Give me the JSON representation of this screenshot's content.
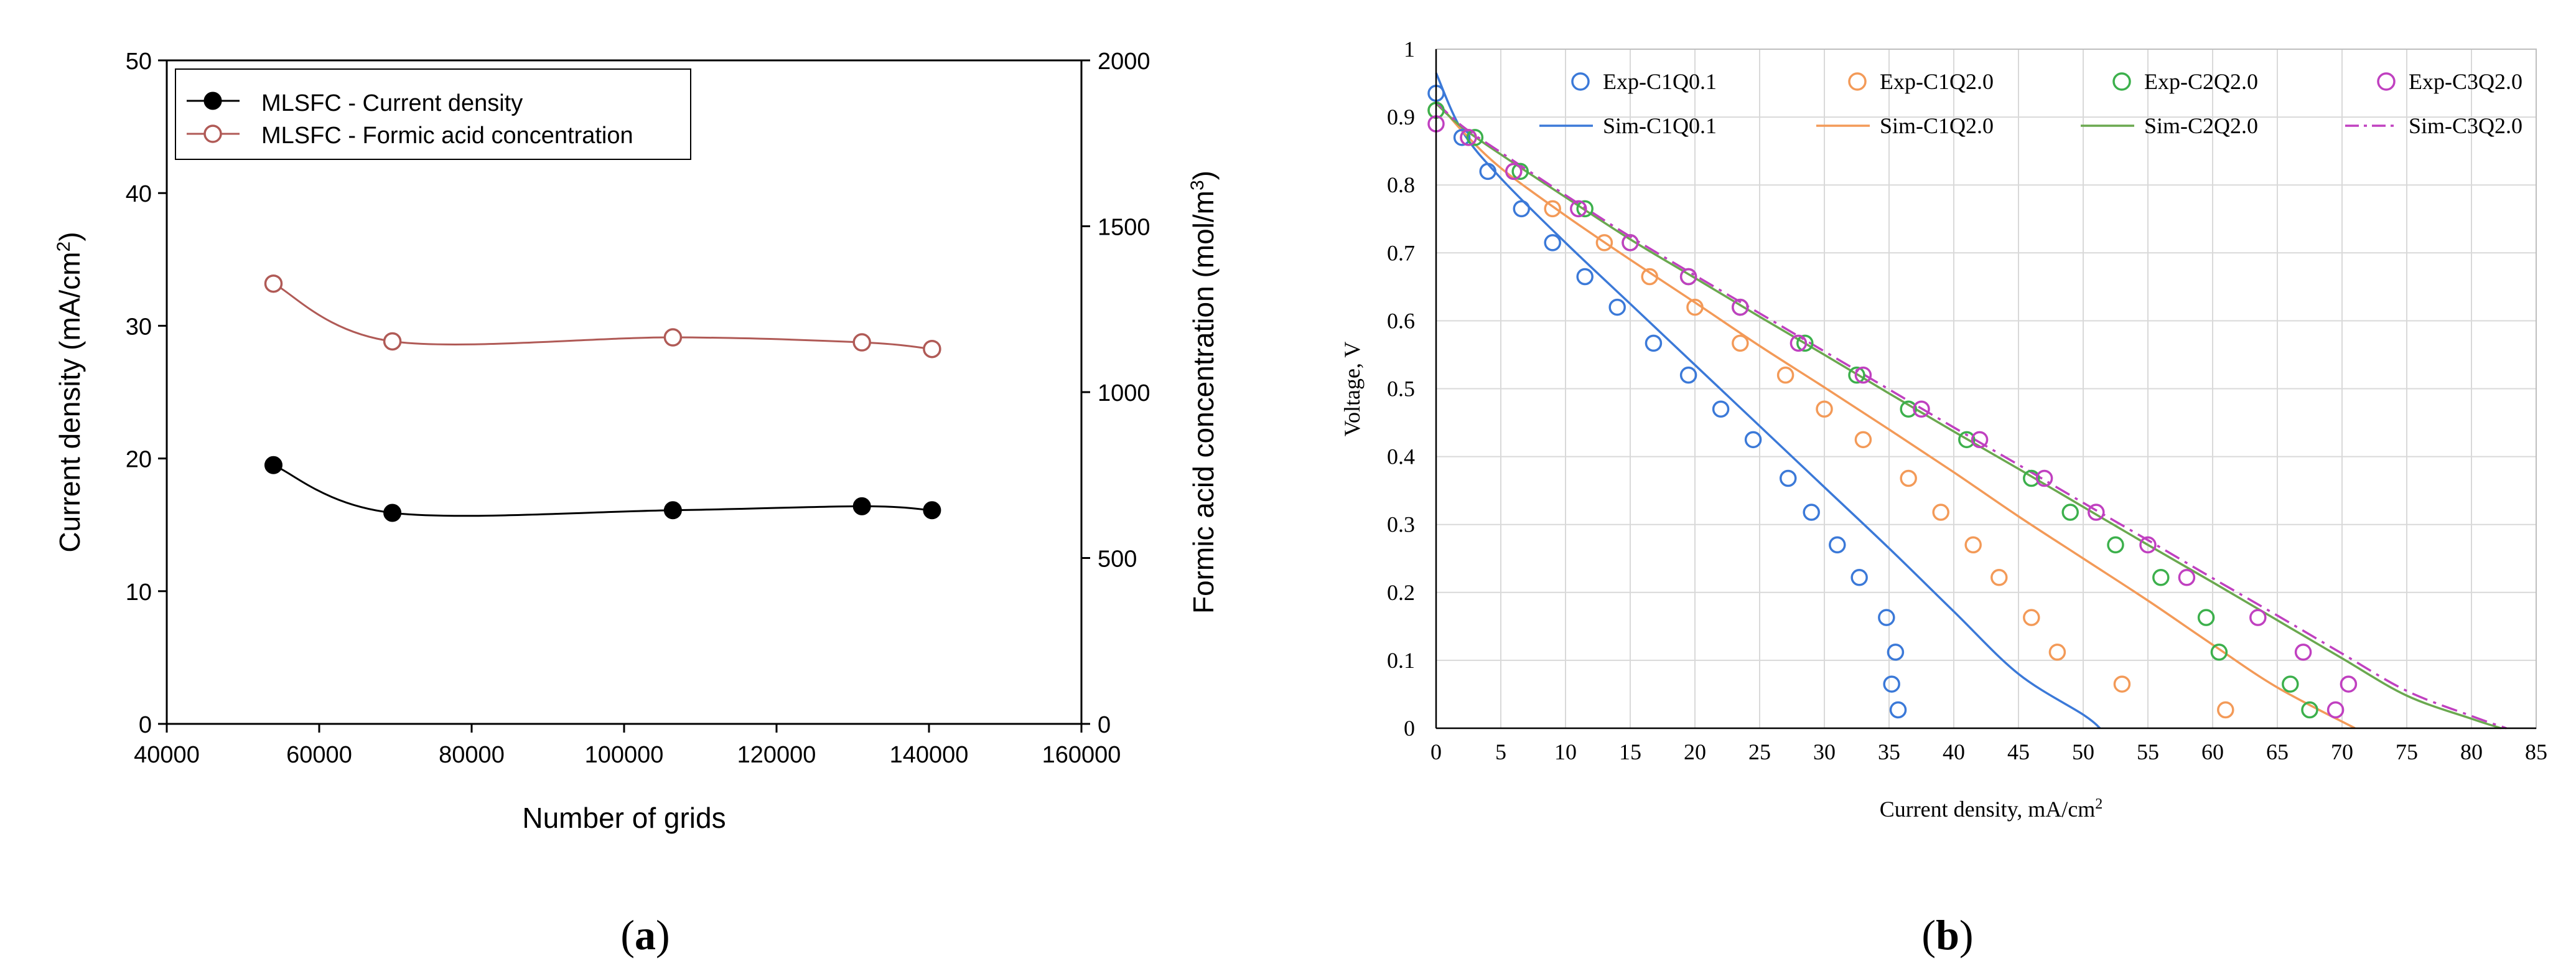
{
  "colors": {
    "axis": "#000000",
    "grid": "#d9d9d9",
    "black_series": "#000000",
    "red_series": "#b05a56",
    "blue": "#3b79d8",
    "orange": "#f39a58",
    "green": "#3cb04c",
    "green_line": "#6aa84f",
    "magenta": "#c040c0"
  },
  "chart_data": [
    {
      "panel": "a",
      "panel_label": "(a)",
      "panel_letter": "a",
      "type": "line",
      "title": "",
      "xlabel": "Number of grids",
      "ylabel": "Current density (mA/cm²)",
      "ylabel_parts": [
        "Current density (mA/cm",
        "2",
        ")"
      ],
      "y2label": "Formic acid concentration (mol/m³)",
      "y2label_parts": [
        "Formic acid concentration (mol/m",
        "3",
        ")"
      ],
      "xlim": [
        40000,
        160000
      ],
      "ylim": [
        0,
        50
      ],
      "y2lim": [
        0,
        2000
      ],
      "xticks": [
        40000,
        60000,
        80000,
        100000,
        120000,
        140000,
        160000
      ],
      "yticks": [
        0,
        10,
        20,
        30,
        40,
        50
      ],
      "y2ticks": [
        0,
        500,
        1000,
        1500,
        2000
      ],
      "x": [
        54000,
        69600,
        106400,
        131200,
        140400
      ],
      "legend_position": "top-left",
      "series": [
        {
          "name": "MLSFC - Current density",
          "axis": "left",
          "marker": "filled-circle",
          "values": [
            19.5,
            15.9,
            16.1,
            16.4,
            16.1
          ]
        },
        {
          "name": "MLSFC - Formic acid concentration",
          "axis": "right",
          "marker": "open-circle",
          "values": [
            1327,
            1153,
            1165,
            1150,
            1130
          ]
        }
      ]
    },
    {
      "panel": "b",
      "panel_label": "(b)",
      "panel_letter": "b",
      "type": "scatter",
      "title": "",
      "xlabel": "Current density, mA/cm²",
      "xlabel_parts": [
        "Current density, mA/cm",
        "2"
      ],
      "ylabel": "Voltage, V",
      "xlim": [
        0,
        85
      ],
      "ylim": [
        0,
        1
      ],
      "xticks": [
        0,
        5,
        10,
        15,
        20,
        25,
        30,
        35,
        40,
        45,
        50,
        55,
        60,
        65,
        70,
        75,
        80,
        85
      ],
      "yticks": [
        0,
        0.1,
        0.2,
        0.3,
        0.4,
        0.5,
        0.6,
        0.7,
        0.8,
        0.9,
        1
      ],
      "ytick_labels": [
        "0",
        "0.1",
        "0.2",
        "0.3",
        "0.4",
        "0.5",
        "0.6",
        "0.7",
        "0.8",
        "0.9",
        "1"
      ],
      "grid": true,
      "legend_position": "top",
      "series": [
        {
          "name": "Exp-C1Q0.1",
          "kind": "marker",
          "color_key": "blue",
          "x": [
            0,
            2,
            4,
            6.6,
            9,
            11.5,
            14,
            16.8,
            19.5,
            22,
            24.5,
            27.2,
            29,
            31,
            32.7,
            34.8,
            35.5,
            35.2,
            35.7
          ],
          "y": [
            0.935,
            0.87,
            0.82,
            0.765,
            0.715,
            0.665,
            0.62,
            0.567,
            0.52,
            0.47,
            0.425,
            0.368,
            0.318,
            0.27,
            0.222,
            0.163,
            0.112,
            0.065,
            0.027
          ]
        },
        {
          "name": "Exp-C1Q2.0",
          "kind": "marker",
          "color_key": "orange",
          "x": [
            0,
            2.5,
            6,
            9,
            13,
            16.5,
            20,
            23.5,
            27,
            30,
            33,
            36.5,
            39,
            41.5,
            43.5,
            46,
            48,
            53,
            61
          ],
          "y": [
            0.91,
            0.87,
            0.82,
            0.765,
            0.715,
            0.665,
            0.62,
            0.567,
            0.52,
            0.47,
            0.425,
            0.368,
            0.318,
            0.27,
            0.222,
            0.163,
            0.112,
            0.065,
            0.027
          ]
        },
        {
          "name": "Exp-C2Q2.0",
          "kind": "marker",
          "color_key": "green",
          "x": [
            0,
            3,
            6.5,
            11.5,
            15,
            19.5,
            23.5,
            28.5,
            32.5,
            36.5,
            41,
            46,
            49,
            52.5,
            56,
            59.5,
            60.5,
            66,
            67.5
          ],
          "y": [
            0.91,
            0.87,
            0.82,
            0.765,
            0.715,
            0.665,
            0.62,
            0.567,
            0.52,
            0.47,
            0.425,
            0.368,
            0.318,
            0.27,
            0.222,
            0.163,
            0.112,
            0.065,
            0.027
          ]
        },
        {
          "name": "Exp-C3Q2.0",
          "kind": "marker",
          "color_key": "magenta",
          "x": [
            0,
            2.5,
            6,
            11,
            15,
            19.5,
            23.5,
            28,
            33,
            37.5,
            42,
            47,
            51,
            55,
            58,
            63.5,
            67,
            70.5,
            69.5
          ],
          "y": [
            0.89,
            0.87,
            0.82,
            0.765,
            0.715,
            0.665,
            0.62,
            0.567,
            0.52,
            0.47,
            0.425,
            0.368,
            0.318,
            0.27,
            0.222,
            0.163,
            0.112,
            0.065,
            0.027
          ]
        },
        {
          "name": "Sim-C1Q0.1",
          "kind": "line",
          "color_key": "blue",
          "dash": "solid",
          "x": [
            0,
            2,
            5,
            10,
            15,
            20,
            25,
            30,
            35,
            40,
            45,
            50,
            51.3
          ],
          "y": [
            0.965,
            0.88,
            0.81,
            0.715,
            0.625,
            0.535,
            0.445,
            0.355,
            0.265,
            0.172,
            0.08,
            0.02,
            0
          ]
        },
        {
          "name": "Sim-C1Q2.0",
          "kind": "line",
          "color_key": "orange",
          "dash": "solid",
          "x": [
            0,
            2,
            5,
            10,
            15,
            20,
            25,
            30,
            35,
            40,
            45,
            50,
            55,
            60,
            65,
            71
          ],
          "y": [
            0.925,
            0.88,
            0.825,
            0.755,
            0.69,
            0.627,
            0.563,
            0.502,
            0.44,
            0.377,
            0.312,
            0.25,
            0.188,
            0.123,
            0.06,
            0
          ]
        },
        {
          "name": "Sim-C2Q2.0",
          "kind": "line",
          "color_key": "green_line",
          "dash": "solid",
          "x": [
            0,
            2,
            5,
            10,
            15,
            20,
            25,
            30,
            35,
            40,
            45,
            50,
            55,
            60,
            65,
            70,
            75,
            80,
            82.3
          ],
          "y": [
            0.92,
            0.885,
            0.845,
            0.782,
            0.72,
            0.663,
            0.606,
            0.55,
            0.493,
            0.437,
            0.382,
            0.326,
            0.27,
            0.215,
            0.159,
            0.103,
            0.048,
            0.014,
            0
          ]
        },
        {
          "name": "Sim-C3Q2.0",
          "kind": "line",
          "color_key": "magenta",
          "dash": "dashdot",
          "x": [
            0,
            2,
            5,
            10,
            15,
            20,
            25,
            30,
            35,
            40,
            45,
            50,
            55,
            60,
            65,
            70,
            75,
            80,
            82.7
          ],
          "y": [
            0.922,
            0.887,
            0.848,
            0.785,
            0.724,
            0.667,
            0.611,
            0.555,
            0.499,
            0.443,
            0.388,
            0.332,
            0.277,
            0.221,
            0.166,
            0.11,
            0.055,
            0.018,
            0
          ]
        }
      ]
    }
  ]
}
